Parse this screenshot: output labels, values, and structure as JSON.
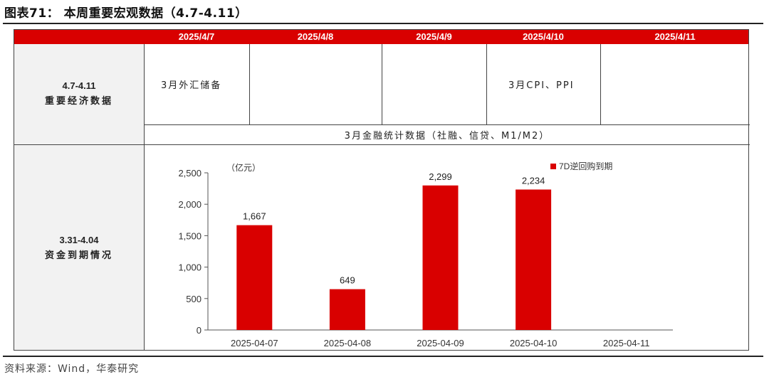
{
  "figure": {
    "title": "图表71： 本周重要宏观数据（4.7-4.11）"
  },
  "header": {
    "dates": [
      "2025/4/7",
      "2025/4/8",
      "2025/4/9",
      "2025/4/10",
      "2025/4/11"
    ]
  },
  "macro": {
    "label_range": "4.7-4.11",
    "label_text": "重要经济数据",
    "events": [
      "3月外汇储备",
      "",
      "",
      "3月CPI、PPI",
      ""
    ],
    "span_event": "3月金融统计数据（社融、信贷、M1/M2）"
  },
  "funds": {
    "label_range": "3.31-4.04",
    "label_text": "资金到期情况"
  },
  "chart_data": {
    "type": "bar",
    "ylabel": "（亿元）",
    "categories": [
      "2025-04-07",
      "2025-04-08",
      "2025-04-09",
      "2025-04-10",
      "2025-04-11"
    ],
    "series": [
      {
        "name": "7D逆回购到期",
        "values": [
          1667,
          649,
          2299,
          2234,
          null
        ],
        "color": "#d90000"
      }
    ],
    "data_labels": [
      "1,667",
      "649",
      "2,299",
      "2,234",
      ""
    ],
    "yticks": [
      "0",
      "500",
      "1,000",
      "1,500",
      "2,000",
      "2,500"
    ],
    "ytick_values": [
      0,
      500,
      1000,
      1500,
      2000,
      2500
    ],
    "ylim": [
      0,
      2500
    ],
    "legend_position": "top-right"
  },
  "source": "资料来源：Wind，华泰研究"
}
